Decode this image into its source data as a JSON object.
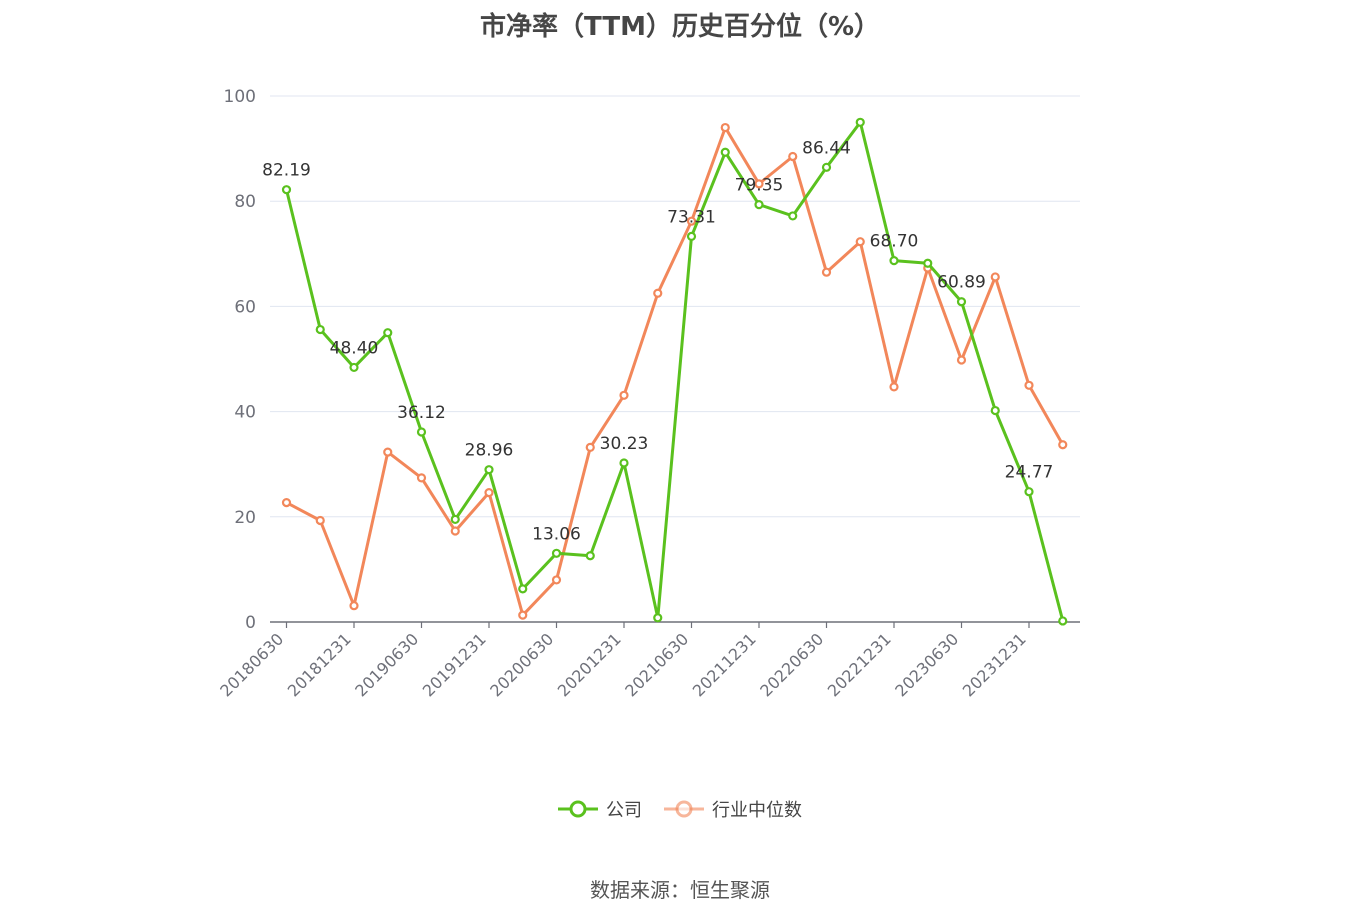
{
  "chart_data": {
    "type": "line",
    "title": "市净率（TTM）历史百分位（%）",
    "xlabel": "",
    "ylabel": "",
    "ylim": [
      0,
      100
    ],
    "yticks": [
      0,
      20,
      40,
      60,
      80,
      100
    ],
    "grid": true,
    "legend_position": "bottom",
    "x": [
      "20180630",
      "20180930",
      "20181231",
      "20190331",
      "20190630",
      "20190930",
      "20191231",
      "20200331",
      "20200630",
      "20200930",
      "20201231",
      "20210331",
      "20210630",
      "20210930",
      "20211231",
      "20220331",
      "20220630",
      "20220930",
      "20221231",
      "20230331",
      "20230630",
      "20230930",
      "20231231",
      "20240331"
    ],
    "xtick_labels": [
      "20180630",
      "20181231",
      "20190630",
      "20191231",
      "20200630",
      "20201231",
      "20210630",
      "20211231",
      "20220630",
      "20221231",
      "20230630",
      "20231231"
    ],
    "series": [
      {
        "name": "公司",
        "color": "#5ac11e",
        "values": [
          82.19,
          55.6,
          48.4,
          55.0,
          36.12,
          19.5,
          28.96,
          6.3,
          13.06,
          12.6,
          30.23,
          0.8,
          73.31,
          89.3,
          79.35,
          77.2,
          86.44,
          95.0,
          68.7,
          68.2,
          60.89,
          40.2,
          24.77,
          0.2
        ],
        "labels": [
          "82.19",
          "",
          "48.40",
          "",
          "36.12",
          "",
          "28.96",
          "",
          "13.06",
          "",
          "30.23",
          "",
          "73.31",
          "",
          "79.35",
          "",
          "86.44",
          "",
          "68.70",
          "",
          "60.89",
          "",
          "24.77",
          ""
        ]
      },
      {
        "name": "行业中位数",
        "color": "#f2875a",
        "values": [
          22.7,
          19.3,
          3.1,
          32.3,
          27.4,
          17.3,
          24.6,
          1.3,
          8.0,
          33.2,
          43.1,
          62.5,
          76.2,
          94.0,
          83.3,
          88.5,
          66.5,
          72.3,
          44.7,
          67.3,
          49.8,
          65.6,
          45.0,
          33.7
        ]
      }
    ]
  },
  "legend": {
    "items": [
      {
        "label": "公司",
        "color": "#5ac11e"
      },
      {
        "label": "行业中位数",
        "color": "#f2875a"
      }
    ]
  },
  "footer": {
    "source": "数据来源：恒生聚源"
  }
}
